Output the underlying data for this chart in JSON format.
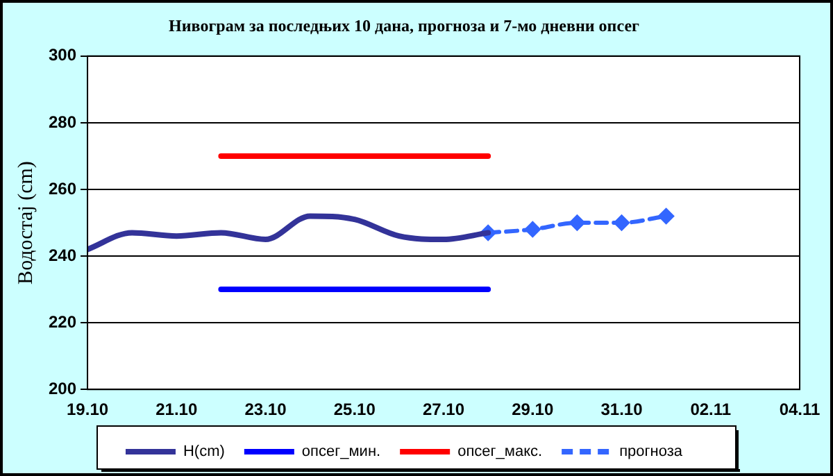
{
  "chart_data": {
    "type": "line",
    "title": "Нивограм за последњих 10 дана, прогноза и 7-мо дневни опсег",
    "ylabel": "Водостај (cm)",
    "xlim": [
      "--10-19",
      "--11-04"
    ],
    "xticks": [
      {
        "value": "--10-19",
        "label": "19.10"
      },
      {
        "value": "--10-21",
        "label": "21.10"
      },
      {
        "value": "--10-23",
        "label": "23.10"
      },
      {
        "value": "--10-25",
        "label": "25.10"
      },
      {
        "value": "--10-27",
        "label": "27.10"
      },
      {
        "value": "--10-29",
        "label": "29.10"
      },
      {
        "value": "--10-31",
        "label": "31.10"
      },
      {
        "value": "--11-02",
        "label": "02.11"
      },
      {
        "value": "--11-04",
        "label": "04.11"
      }
    ],
    "ylim": [
      200,
      300
    ],
    "yticks": [
      200,
      220,
      240,
      260,
      280,
      300
    ],
    "grid": "y",
    "legend": "bottom",
    "series": [
      {
        "name": "H(cm)",
        "color": "#333399",
        "marker": "none",
        "line_style": "solid",
        "x": [
          "--10-19",
          "--10-20",
          "--10-21",
          "--10-22",
          "--10-23",
          "--10-24",
          "--10-25",
          "--10-26",
          "--10-27",
          "--10-28"
        ],
        "values": [
          242,
          247,
          246,
          247,
          245,
          252,
          251,
          246,
          245,
          247
        ]
      },
      {
        "name": "опсег_мин.",
        "color": "#0000ff",
        "marker": "none",
        "line_style": "solid",
        "x": [
          "--10-22",
          "--10-28"
        ],
        "values": [
          230,
          230
        ]
      },
      {
        "name": "опсег_макс.",
        "color": "#ff0000",
        "marker": "none",
        "line_style": "solid",
        "x": [
          "--10-22",
          "--10-28"
        ],
        "values": [
          270,
          270
        ]
      },
      {
        "name": "прогноза",
        "color": "#3366ff",
        "marker": "diamond",
        "line_style": "dashed",
        "x": [
          "--10-28",
          "--10-29",
          "--10-30",
          "--10-31",
          "--11-01"
        ],
        "values": [
          247,
          248,
          250,
          250,
          252
        ]
      }
    ]
  }
}
